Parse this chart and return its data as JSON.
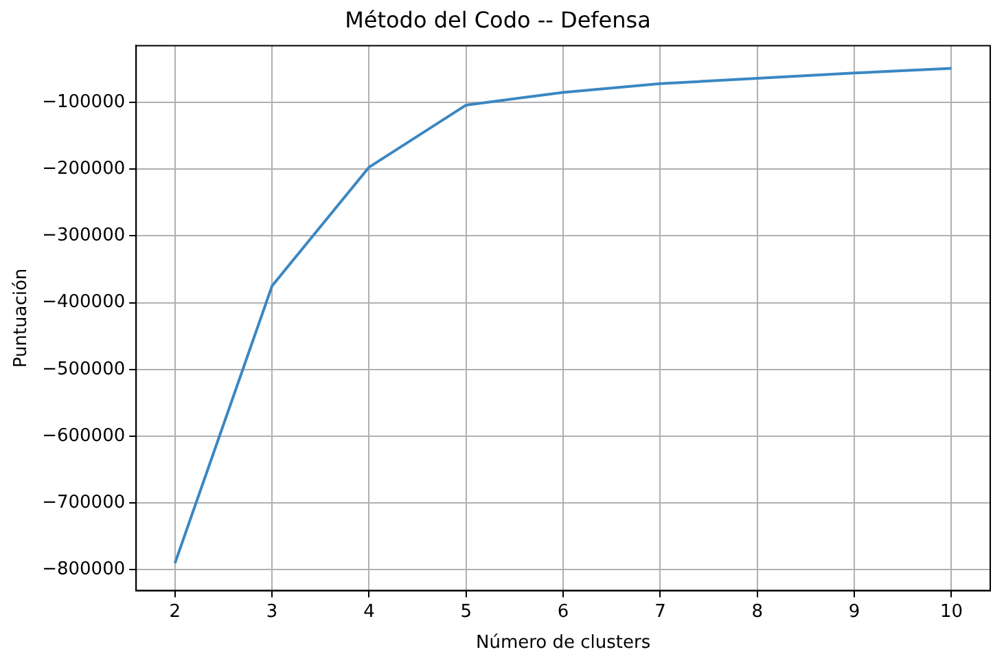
{
  "chart_data": {
    "type": "line",
    "title": "Método del Codo -- Defensa",
    "xlabel": "Número de clusters",
    "ylabel": "Puntuación",
    "x": [
      2,
      3,
      4,
      5,
      6,
      7,
      8,
      9,
      10
    ],
    "series": [
      {
        "color": "#3a87c2",
        "values": [
          -790000,
          -375000,
          -197000,
          -104000,
          -85000,
          -72000,
          -64000,
          -56000,
          -49000
        ]
      }
    ],
    "xlim": [
      1.6,
      10.4
    ],
    "xticks": [
      2,
      3,
      4,
      5,
      6,
      7,
      8,
      9,
      10
    ],
    "ylim": [
      -831000,
      -15000
    ],
    "yticks": [
      {
        "value": -800000,
        "label": "−800000"
      },
      {
        "value": -700000,
        "label": "−700000"
      },
      {
        "value": -600000,
        "label": "−600000"
      },
      {
        "value": -500000,
        "label": "−500000"
      },
      {
        "value": -400000,
        "label": "−400000"
      },
      {
        "value": -300000,
        "label": "−300000"
      },
      {
        "value": -200000,
        "label": "−200000"
      },
      {
        "value": -100000,
        "label": "−100000"
      }
    ],
    "grid": true,
    "legend": false,
    "marker": "none",
    "line_style": "solid"
  }
}
